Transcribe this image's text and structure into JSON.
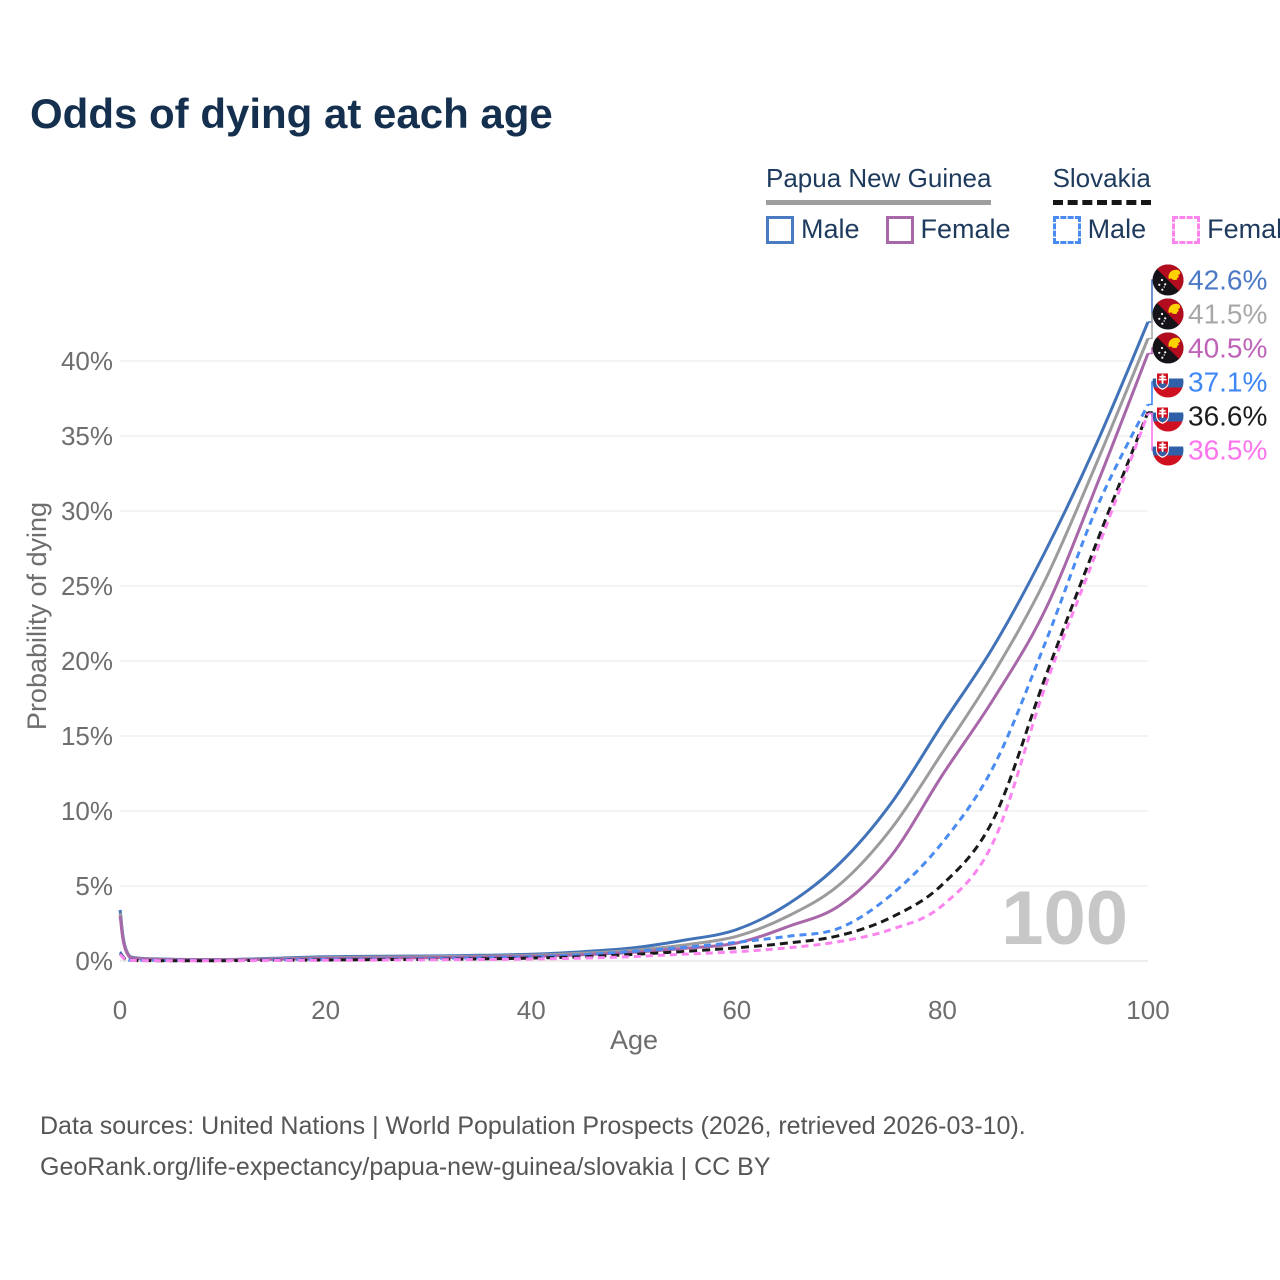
{
  "title": "Odds of dying at each age",
  "legend": {
    "groups": [
      {
        "name": "Papua New Guinea",
        "line_style": "solid",
        "underline_color": "#9e9e9e",
        "items": [
          {
            "label": "Male",
            "color": "#4a7ac0"
          },
          {
            "label": "Female",
            "color": "#a867a8"
          }
        ]
      },
      {
        "name": "Slovakia",
        "line_style": "dashed",
        "underline_color": "#161616",
        "items": [
          {
            "label": "Male",
            "color": "#4a8bf2"
          },
          {
            "label": "Female",
            "color": "#fb84ef"
          }
        ]
      }
    ]
  },
  "watermark": "100",
  "footer": {
    "line1": "Data sources: United Nations | World Population Prospects (2026, retrieved 2026-03-10).",
    "line2": "GeoRank.org/life-expectancy/papua-new-guinea/slovakia | CC BY"
  },
  "chart_data": {
    "type": "line",
    "title": "Odds of dying at each age",
    "xlabel": "Age",
    "ylabel": "Probability of dying",
    "xlim": [
      0,
      100
    ],
    "ylim": [
      0,
      45
    ],
    "x_ticks": [
      0,
      20,
      40,
      60,
      80,
      100
    ],
    "y_ticks": [
      0,
      5,
      10,
      15,
      20,
      25,
      30,
      35,
      40
    ],
    "y_tick_suffix": "%",
    "grid": true,
    "legend_position": "top-right",
    "ages": [
      0,
      1,
      5,
      10,
      15,
      20,
      25,
      30,
      35,
      40,
      45,
      50,
      55,
      60,
      65,
      70,
      75,
      80,
      85,
      90,
      95,
      100
    ],
    "series": [
      {
        "name": "Papua New Guinea Male",
        "country": "Papua New Guinea",
        "sex": "Male",
        "color": "#4273b8",
        "label_color": "#4b79c4",
        "dash": "",
        "flag": "png",
        "end_label": "42.6%",
        "end_value": 42.6,
        "values": [
          3.4,
          0.28,
          0.12,
          0.1,
          0.18,
          0.28,
          0.32,
          0.33,
          0.38,
          0.45,
          0.62,
          0.88,
          1.4,
          2.1,
          3.8,
          6.5,
          10.5,
          15.8,
          21.0,
          27.3,
          34.5,
          42.6
        ]
      },
      {
        "name": "Papua New Guinea Both sexes",
        "country": "Papua New Guinea",
        "sex": "Both sexes",
        "color": "#9c9c9c",
        "label_color": "#a8a8a8",
        "dash": "",
        "flag": "png",
        "end_label": "41.5%",
        "end_value": 41.5,
        "values": [
          3.2,
          0.25,
          0.1,
          0.09,
          0.15,
          0.22,
          0.26,
          0.28,
          0.32,
          0.38,
          0.52,
          0.72,
          1.08,
          1.65,
          3.0,
          5.1,
          8.8,
          13.9,
          19.2,
          25.4,
          33.2,
          41.5
        ]
      },
      {
        "name": "Papua New Guinea Female",
        "country": "Papua New Guinea",
        "sex": "Female",
        "color": "#a867a8",
        "label_color": "#bf63b8",
        "dash": "",
        "flag": "png",
        "end_label": "40.5%",
        "end_value": 40.5,
        "values": [
          3.0,
          0.22,
          0.09,
          0.08,
          0.12,
          0.17,
          0.2,
          0.22,
          0.27,
          0.32,
          0.42,
          0.58,
          0.85,
          1.2,
          2.3,
          3.7,
          7.0,
          12.4,
          17.5,
          23.4,
          31.7,
          40.5
        ]
      },
      {
        "name": "Slovakia Male",
        "country": "Slovakia",
        "sex": "Male",
        "color": "#4a8bf2",
        "label_color": "#3f87f5",
        "dash": "7 5",
        "flag": "svk",
        "end_label": "37.1%",
        "end_value": 37.1,
        "values": [
          0.6,
          0.05,
          0.03,
          0.03,
          0.08,
          0.1,
          0.13,
          0.16,
          0.21,
          0.28,
          0.42,
          0.65,
          0.92,
          1.25,
          1.65,
          2.2,
          4.4,
          7.9,
          13.0,
          21.2,
          30.2,
          37.1
        ]
      },
      {
        "name": "Slovakia Both sexes",
        "country": "Slovakia",
        "sex": "Both sexes",
        "color": "#1a1a1a",
        "label_color": "#1c1c1c",
        "dash": "8 5",
        "flag": "svk",
        "end_label": "36.6%",
        "end_value": 36.6,
        "values": [
          0.5,
          0.04,
          0.02,
          0.02,
          0.05,
          0.07,
          0.09,
          0.11,
          0.14,
          0.19,
          0.28,
          0.44,
          0.64,
          0.88,
          1.2,
          1.7,
          2.9,
          5.1,
          9.5,
          18.9,
          27.9,
          36.6
        ]
      },
      {
        "name": "Slovakia Female",
        "country": "Slovakia",
        "sex": "Female",
        "color": "#fb84ef",
        "label_color": "#fb74ec",
        "dash": "7 5",
        "flag": "svk",
        "end_label": "36.5%",
        "end_value": 36.5,
        "values": [
          0.45,
          0.04,
          0.02,
          0.02,
          0.03,
          0.05,
          0.06,
          0.08,
          0.1,
          0.13,
          0.19,
          0.3,
          0.46,
          0.62,
          0.88,
          1.3,
          2.1,
          3.7,
          8.0,
          18.3,
          27.3,
          36.5
        ]
      }
    ]
  }
}
